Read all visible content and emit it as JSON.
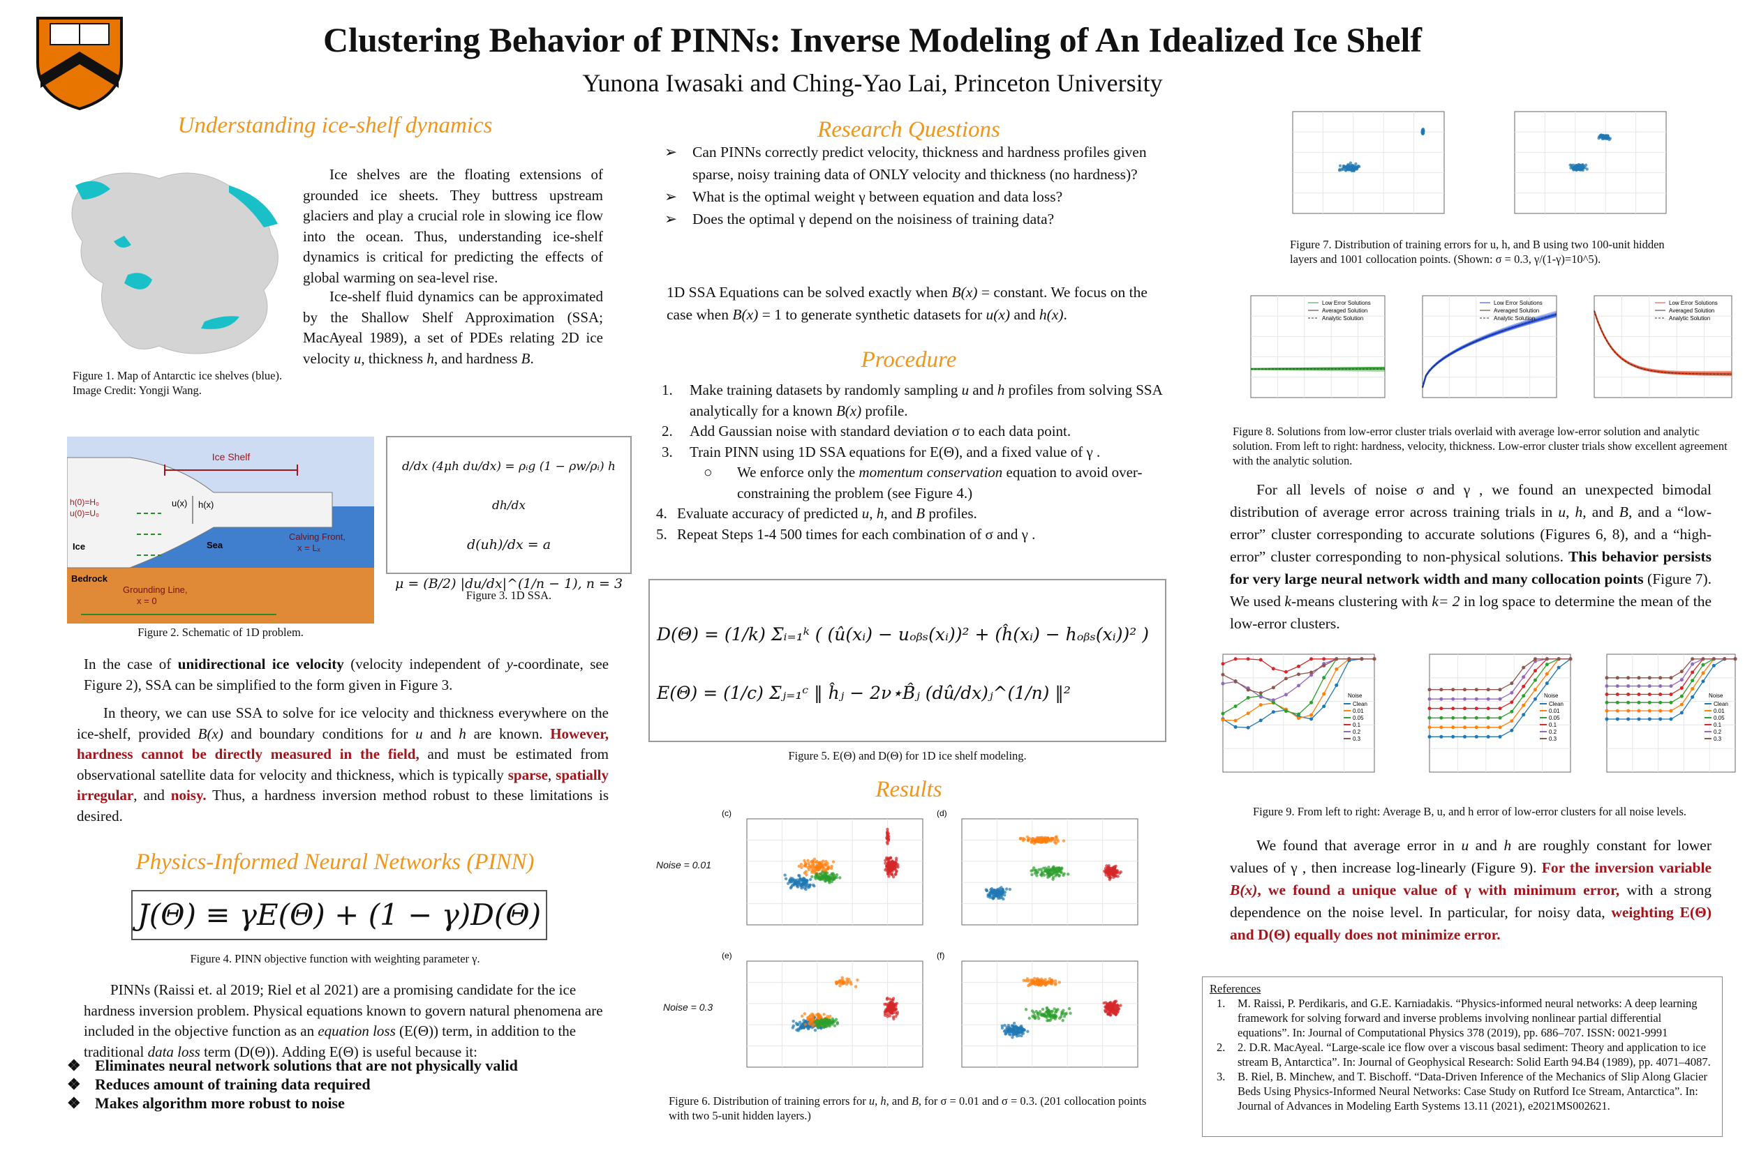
{
  "header": {
    "title": "Clustering Behavior of PINNs: Inverse Modeling of An Idealized Ice Shelf",
    "authors": "Yunona Iwasaki and Ching-Yao Lai, Princeton University"
  },
  "understanding": {
    "heading": "Understanding ice-shelf dynamics",
    "p1": "Ice shelves are the floating extensions of grounded ice sheets. They buttress upstream glaciers and play a crucial role in slowing ice flow into the ocean. Thus, understanding ice-shelf dynamics is critical for predicting the effects of global warming on sea-level rise.",
    "p2": [
      "Ice-shelf fluid dynamics can be approximated by the Shallow Shelf Approximation (SSA; MacAyeal 1989), a set of PDEs relating 2D ice velocity ",
      "u",
      ", thickness ",
      "h",
      ", and hardness ",
      "B",
      "."
    ]
  },
  "figure1": {
    "caption": [
      "Figure 1. Map of Antarctic ice shelves (blue).",
      "Image Credit: Yongji Wang."
    ]
  },
  "figure2": {
    "labels": [
      "Ice Shelf",
      "h(0)=H₀",
      "u(0)=U₀",
      "u(x)",
      "h(x)",
      "Ice",
      "Sea",
      "Bedrock",
      "Calving Front,",
      "x = Lₓ",
      "Grounding Line,",
      "x = 0"
    ],
    "caption": "Figure 2. Schematic of 1D problem."
  },
  "figure3": {
    "equations": [
      "d/dx (4μh du/dx) = ρᵢg (1 − ρw/ρᵢ) h dh/dx",
      "d(uh)/dx = a",
      "μ = (B/2) |du/dx|^(1/n − 1),   n = 3"
    ],
    "caption": "Figure 3. 1D SSA."
  },
  "ssa_text": {
    "p1": [
      "In the case of ",
      "unidirectional ice velocity",
      " (velocity independent of ",
      "y",
      "-coordinate, see Figure 2), SSA can be simplified to the form given in Figure 3."
    ],
    "p2": [
      "In theory, we can use SSA to solve for ice velocity and thickness everywhere on the ice-shelf, provided ",
      "B(x)",
      " and boundary conditions for ",
      "u",
      " and ",
      "h",
      " are known. ",
      "However, hardness cannot be directly measured in the field,",
      " and must be estimated from observational satellite data for velocity and thickness, which is typically ",
      "sparse",
      ", ",
      "spatially irregular",
      ", and ",
      "noisy.",
      " Thus, a hardness inversion method robust to these limitations is desired."
    ]
  },
  "pinn": {
    "heading": "Physics-Informed Neural Networks (PINN)",
    "equation": "J(Θ) ≡ γE(Θ) + (1 − γ)D(Θ)",
    "caption": "Figure 4. PINN objective function with weighting parameter γ.",
    "paragraph": [
      "PINNs (Raissi et. al 2019; Riel et al 2021) are a promising candidate for the ice hardness inversion problem. Physical equations known to govern natural phenomena are included in the objective function as an ",
      "equation loss",
      "  (E(Θ)) term, in addition to the traditional ",
      "data loss",
      " term (D(Θ)). Adding E(Θ) is useful because it:"
    ],
    "bullets": [
      "Eliminates neural network solutions that are not physically valid",
      "Reduces amount of training data required",
      "Makes algorithm more robust to noise"
    ]
  },
  "research_questions": {
    "heading": "Research Questions",
    "questions": [
      "Can PINNs correctly predict velocity, thickness and hardness profiles given sparse, noisy training data of ONLY velocity and thickness (no hardness)?",
      "What is the optimal weight γ between equation and data loss?",
      "Does the optimal γ depend on the noisiness of training data?"
    ],
    "ssa_note": [
      "1D SSA Equations can be solved exactly when ",
      "B(x)",
      " = constant. We focus on the case when ",
      "B(x)",
      " = 1 to generate synthetic datasets for ",
      "u(x)",
      " and ",
      "h(x)",
      "."
    ]
  },
  "procedure": {
    "heading": "Procedure",
    "steps": [
      {
        "marker": "1.",
        "text": [
          "Make training datasets by randomly sampling ",
          "u",
          " and ",
          "h",
          " profiles from solving SSA analytically for a known ",
          "B(x)",
          " profile."
        ]
      },
      {
        "marker": "2.",
        "text": [
          "Add Gaussian noise with standard deviation σ to each data point."
        ]
      },
      {
        "marker": "3.",
        "text": [
          "Train PINN using 1D SSA equations for E(Θ), and a fixed value of  γ ."
        ]
      },
      {
        "marker": "4.",
        "text": [
          "Evaluate accuracy of predicted ",
          "u",
          ", ",
          "h",
          ", and ",
          "B",
          " profiles."
        ]
      },
      {
        "marker": "5.",
        "text": [
          "Repeat Steps 1-4 500 times for each combination of σ and γ ."
        ]
      }
    ],
    "substep": [
      "We enforce only the ",
      "momentum conservation",
      " equation to avoid over-constraining the problem (see Figure 4.)"
    ]
  },
  "figure5": {
    "equations": [
      "D(Θ) = (1/k) Σᵢ₌₁ᵏ ( (û(xᵢ) − uₒᵦₛ(xᵢ))² + (ĥ(xᵢ) − hₒᵦₛ(xᵢ))² )",
      "E(Θ) = (1/c) Σⱼ₌₁ᶜ ‖ ĥⱼ − 2ν⋆B̂ⱼ (dû/dx)ⱼ^(1/n) ‖²"
    ],
    "caption": "Figure 5. E(Θ) and D(Θ) for 1D ice shelf modeling."
  },
  "results": {
    "heading": "Results"
  },
  "figure6": {
    "panels": [
      "(c)",
      "(d)",
      "(e)",
      "(f)"
    ],
    "noise": [
      "Noise = 0.01",
      "Noise = 0.3"
    ],
    "caption": [
      "Figure 6. Distribution of training errors for ",
      "u",
      ", ",
      "h",
      ", and ",
      "B",
      ", for σ = 0.01 and  σ = 0.3. (201 collocation points with two 5-unit hidden layers.)"
    ]
  },
  "figure7": {
    "caption": "Figure 7. Distribution of training errors for u, h, and B using two 100-unit hidden layers and 1001 collocation points.  (Shown: σ = 0.3, γ/(1-γ)=10^5)."
  },
  "figure8": {
    "legend": [
      "Low Error Solutions",
      "Averaged Solution",
      "Analytic Solution"
    ],
    "caption": "Figure 8. Solutions from low-error cluster trials overlaid with average low-error solution and analytic solution. From left to right: hardness, velocity, thickness. Low-error cluster trials show excellent agreement with the analytic solution."
  },
  "findings": {
    "p1": [
      "For all levels of noise σ and γ , we found an unexpected bimodal distribution of average error across training trials in ",
      "u",
      ", ",
      "h",
      ", and ",
      "B",
      ", and a “low-error” cluster corresponding to accurate solutions (Figures 6, 8), and a “high-error” cluster corresponding to non-physical solutions. ",
      "This behavior persists for very large neural network width and many collocation points",
      " (Figure 7). We used ",
      "k",
      "-means clustering with ",
      "k= 2",
      " in log space to determine the mean of the low-error clusters."
    ],
    "p2": [
      "We found that average error in ",
      "u",
      " and ",
      "h",
      " are roughly constant for lower values of  γ , then increase log-linearly (Figure 9). ",
      "For the inversion variable ",
      "B(x)",
      ", we found a unique value of γ with minimum error,",
      " with a strong dependence on the noise level. In particular, for noisy data, ",
      "weighting E(Θ) and D(Θ) equally does not minimize error."
    ]
  },
  "figure9": {
    "legend_title": "Noise",
    "legend": [
      {
        "label": "Clean",
        "color": "#1f77b4"
      },
      {
        "label": "0.01",
        "color": "#ff7f0e"
      },
      {
        "label": "0.05",
        "color": "#2ca02c"
      },
      {
        "label": "0.1",
        "color": "#d62728"
      },
      {
        "label": "0.2",
        "color": "#9467bd"
      },
      {
        "label": "0.3",
        "color": "#8c564b"
      }
    ],
    "caption": "Figure 9. From left to right: Average B, u, and h error of low-error clusters for all noise levels."
  },
  "references": {
    "title": "References",
    "items": [
      {
        "marker": "1.",
        "text": "M. Raissi, P. Perdikaris, and G.E. Karniadakis. “Physics-informed neural networks: A deep learning framework for solving forward and inverse problems involving nonlinear partial differential equations”.  In: Journal of Computational Physics 378 (2019), pp. 686–707. ISSN: 0021-9991"
      },
      {
        "marker": "2.",
        "text": "2. D.R. MacAyeal. “Large-scale ice flow over a viscous basal sediment: Theory and application to ice stream B, Antarctica”. In: Journal of Geophysical Research: Solid Earth 94.B4 (1989), pp. 4071–4087."
      },
      {
        "marker": "3.",
        "text": "B. Riel, B. Minchew, and T. Bischoff. “Data-Driven Inference of the Mechanics of Slip Along Glacier Beds Using Physics-Informed Neural Networks: Case Study on Rutford Ice Stream, Antarctica”. In: Journal of Advances in Modeling Earth Systems 13.11 (2021), e2021MS002621."
      }
    ]
  }
}
